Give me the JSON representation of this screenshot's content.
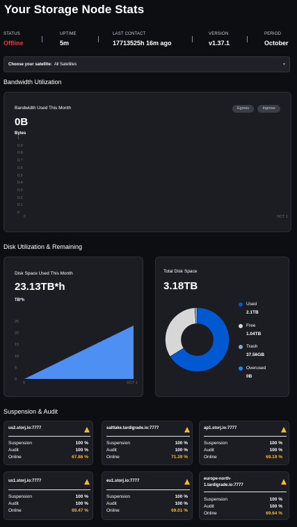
{
  "header": {
    "title": "Your Storage Node Stats"
  },
  "stats": [
    {
      "label": "STATUS",
      "value": "Offline"
    },
    {
      "label": "UPTIME",
      "value": "5m"
    },
    {
      "label": "LAST CONTACT",
      "value": "17713525h 16m ago"
    },
    {
      "label": "VERSION",
      "value": "v1.37.1"
    },
    {
      "label": "PERIOD",
      "value": "October"
    }
  ],
  "satellite_select": {
    "label": "Choose your satellite:",
    "value": "All Satellites"
  },
  "bandwidth": {
    "section_title": "Bandwidth Utilization",
    "card_title": "Bandwidth Used This Month",
    "value": "0B",
    "unit": "Bytes",
    "toggle_egress": "Egress",
    "toggle_ingress": "Ingress",
    "x_start": "0",
    "x_end": "OCT 1"
  },
  "disk": {
    "section_title": "Disk Utilization & Remaining",
    "used_card_title": "Disk Space Used This Month",
    "used_value": "23.13TB*h",
    "unit": "TB*h",
    "x_start": "0",
    "x_end": "OCT 1",
    "total_card_title": "Total Disk Space",
    "total_value": "3.18TB",
    "legend": [
      {
        "name": "Used",
        "value": "2.1TB",
        "color": "#0059d0"
      },
      {
        "name": "Free",
        "value": "1.04TB",
        "color": "#d7d7d7"
      },
      {
        "name": "Trash",
        "value": "37.56GB",
        "color": "#8fa7c6"
      },
      {
        "name": "Overused",
        "value": "0B",
        "color": "#2683ff"
      }
    ]
  },
  "chart_data": [
    {
      "type": "line",
      "title": "Bandwidth Used This Month",
      "ylabel": "Bytes",
      "y_ticks": [
        "1",
        "0.9",
        "0.8",
        "0.7",
        "0.6",
        "0.5",
        "0.4",
        "0.3",
        "0.2",
        "0.1",
        "0"
      ],
      "ylim": [
        0,
        1
      ],
      "x_ticks": [
        "0",
        "OCT 1"
      ],
      "series": []
    },
    {
      "type": "area",
      "title": "Disk Space Used This Month",
      "ylabel": "TB*h",
      "y_ticks": [
        "25",
        "20",
        "15",
        "10",
        "5",
        "0"
      ],
      "ylim": [
        0,
        25
      ],
      "x_ticks": [
        "0",
        "OCT 1"
      ],
      "x": [
        0,
        1
      ],
      "values": [
        0,
        23.13
      ],
      "color": "#4d8ff2"
    },
    {
      "type": "pie",
      "title": "Total Disk Space",
      "categories": [
        "Used",
        "Free",
        "Trash",
        "Overused"
      ],
      "values": [
        2.1,
        1.04,
        0.03756,
        0
      ],
      "colors": [
        "#0059d0",
        "#d7d7d7",
        "#8fa7c6",
        "#2683ff"
      ]
    }
  ],
  "audit": {
    "section_title": "Suspension & Audit",
    "row_labels": {
      "suspension": "Suspension",
      "audit": "Audit",
      "online": "Online"
    },
    "satellites": [
      {
        "name": "us2.storj.io:7777",
        "suspension": "100 %",
        "audit": "100 %",
        "online": "67.86 %"
      },
      {
        "name": "saltlake.tardigrade.io:7777",
        "suspension": "100 %",
        "audit": "100 %",
        "online": "71.39 %"
      },
      {
        "name": "ap1.storj.io:7777",
        "suspension": "100 %",
        "audit": "100 %",
        "online": "69.19 %"
      },
      {
        "name": "us1.storj.io:7777",
        "suspension": "100 %",
        "audit": "100 %",
        "online": "69.47 %"
      },
      {
        "name": "eu1.storj.io:7777",
        "suspension": "100 %",
        "audit": "100 %",
        "online": "69.01 %"
      },
      {
        "name": "europe-north-1.tardigrade.io:7777",
        "suspension": "100 %",
        "audit": "100 %",
        "online": "69.64 %"
      }
    ],
    "warning_icon": "warning-triangle-icon",
    "accent_warning": "#f5b82e"
  }
}
